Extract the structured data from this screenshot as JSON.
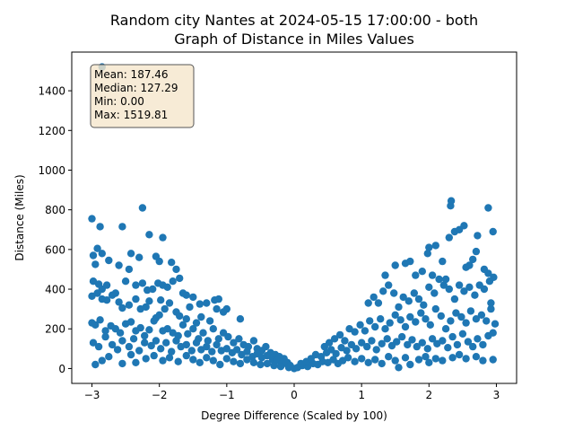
{
  "chart_data": {
    "type": "scatter",
    "title_line1": "Random city Nantes at 2024-05-15 17:00:00  - both",
    "title_line2": "Graph of Distance in Miles Values",
    "xlabel": "Degree Difference (Scaled by 100)",
    "ylabel": "Distance (Miles)",
    "xlim": [
      -3.3,
      3.3
    ],
    "ylim": [
      -75,
      1595
    ],
    "xticks": [
      -3,
      -2,
      -1,
      0,
      1,
      2,
      3
    ],
    "yticks": [
      0,
      200,
      400,
      600,
      800,
      1000,
      1200,
      1400
    ],
    "grid": false,
    "marker_color": "#1f77b4",
    "stats": {
      "mean": "Mean: 187.46",
      "median": "Median: 127.29",
      "min": "Min: 0.00",
      "max": "Max: 1519.81"
    },
    "points": [
      [
        -2.85,
        1520
      ],
      [
        -3.0,
        755
      ],
      [
        -2.88,
        715
      ],
      [
        -2.55,
        715
      ],
      [
        -2.25,
        810
      ],
      [
        -2.15,
        675
      ],
      [
        -1.95,
        660
      ],
      [
        -2.92,
        605
      ],
      [
        -2.85,
        580
      ],
      [
        -2.75,
        545
      ],
      [
        -2.98,
        570
      ],
      [
        -2.95,
        525
      ],
      [
        -2.6,
        520
      ],
      [
        -2.42,
        580
      ],
      [
        -2.3,
        560
      ],
      [
        -2.05,
        565
      ],
      [
        -2.0,
        540
      ],
      [
        -1.82,
        535
      ],
      [
        -1.75,
        500
      ],
      [
        -1.7,
        455
      ],
      [
        -2.98,
        440
      ],
      [
        -2.9,
        425
      ],
      [
        -2.85,
        400
      ],
      [
        -2.78,
        420
      ],
      [
        -2.65,
        380
      ],
      [
        -2.5,
        440
      ],
      [
        -2.45,
        500
      ],
      [
        -2.35,
        420
      ],
      [
        -2.25,
        430
      ],
      [
        -2.18,
        395
      ],
      [
        -2.1,
        400
      ],
      [
        -2.02,
        430
      ],
      [
        -1.95,
        420
      ],
      [
        -1.88,
        410
      ],
      [
        -1.8,
        440
      ],
      [
        -1.65,
        380
      ],
      [
        -1.6,
        370
      ],
      [
        -1.5,
        360
      ],
      [
        -1.4,
        325
      ],
      [
        -1.3,
        330
      ],
      [
        -1.18,
        345
      ],
      [
        -1.12,
        350
      ],
      [
        -1.0,
        300
      ],
      [
        -3.0,
        365
      ],
      [
        -2.92,
        380
      ],
      [
        -2.85,
        350
      ],
      [
        -2.78,
        345
      ],
      [
        -2.7,
        370
      ],
      [
        -2.6,
        335
      ],
      [
        -2.55,
        305
      ],
      [
        -2.45,
        320
      ],
      [
        -2.35,
        350
      ],
      [
        -2.28,
        300
      ],
      [
        -2.2,
        310
      ],
      [
        -2.15,
        340
      ],
      [
        -2.05,
        255
      ],
      [
        -1.98,
        345
      ],
      [
        -1.92,
        300
      ],
      [
        -1.85,
        330
      ],
      [
        -1.75,
        285
      ],
      [
        -1.7,
        265
      ],
      [
        -1.6,
        250
      ],
      [
        -1.55,
        310
      ],
      [
        -1.45,
        230
      ],
      [
        -1.38,
        260
      ],
      [
        -1.25,
        240
      ],
      [
        -1.15,
        300
      ],
      [
        -1.05,
        285
      ],
      [
        -0.8,
        250
      ],
      [
        -3.0,
        230
      ],
      [
        -2.95,
        220
      ],
      [
        -2.88,
        245
      ],
      [
        -2.8,
        190
      ],
      [
        -2.72,
        215
      ],
      [
        -2.65,
        200
      ],
      [
        -2.58,
        180
      ],
      [
        -2.5,
        225
      ],
      [
        -2.42,
        235
      ],
      [
        -2.35,
        190
      ],
      [
        -2.28,
        205
      ],
      [
        -2.22,
        165
      ],
      [
        -2.15,
        195
      ],
      [
        -2.08,
        240
      ],
      [
        -2.0,
        270
      ],
      [
        -1.95,
        190
      ],
      [
        -1.88,
        200
      ],
      [
        -1.8,
        180
      ],
      [
        -1.72,
        165
      ],
      [
        -1.65,
        220
      ],
      [
        -1.58,
        175
      ],
      [
        -1.5,
        200
      ],
      [
        -1.42,
        150
      ],
      [
        -1.35,
        180
      ],
      [
        -1.28,
        140
      ],
      [
        -1.2,
        200
      ],
      [
        -1.12,
        150
      ],
      [
        -1.05,
        180
      ],
      [
        -0.98,
        160
      ],
      [
        -0.9,
        130
      ],
      [
        -0.82,
        150
      ],
      [
        -0.75,
        120
      ],
      [
        -0.68,
        110
      ],
      [
        -0.6,
        140
      ],
      [
        -0.55,
        100
      ],
      [
        -0.48,
        90
      ],
      [
        -0.42,
        110
      ],
      [
        -0.35,
        80
      ],
      [
        -0.28,
        70
      ],
      [
        -0.22,
        60
      ],
      [
        -0.15,
        50
      ],
      [
        -0.1,
        30
      ],
      [
        -2.98,
        130
      ],
      [
        -2.9,
        110
      ],
      [
        -2.8,
        160
      ],
      [
        -2.7,
        120
      ],
      [
        -2.62,
        95
      ],
      [
        -2.55,
        140
      ],
      [
        -2.45,
        110
      ],
      [
        -2.38,
        150
      ],
      [
        -2.3,
        90
      ],
      [
        -2.22,
        130
      ],
      [
        -2.12,
        115
      ],
      [
        -2.05,
        140
      ],
      [
        -1.98,
        100
      ],
      [
        -1.9,
        130
      ],
      [
        -1.82,
        85
      ],
      [
        -1.75,
        140
      ],
      [
        -1.68,
        110
      ],
      [
        -1.6,
        120
      ],
      [
        -1.52,
        90
      ],
      [
        -1.45,
        130
      ],
      [
        -1.38,
        95
      ],
      [
        -1.3,
        110
      ],
      [
        -1.22,
        85
      ],
      [
        -1.15,
        120
      ],
      [
        -1.08,
        90
      ],
      [
        -1.0,
        100
      ],
      [
        -0.92,
        80
      ],
      [
        -0.85,
        95
      ],
      [
        -0.78,
        70
      ],
      [
        -0.7,
        85
      ],
      [
        -0.62,
        60
      ],
      [
        -0.55,
        75
      ],
      [
        -0.48,
        55
      ],
      [
        -0.4,
        65
      ],
      [
        -0.32,
        45
      ],
      [
        -0.25,
        40
      ],
      [
        -0.18,
        30
      ],
      [
        -0.12,
        25
      ],
      [
        -0.06,
        15
      ],
      [
        -2.95,
        20
      ],
      [
        -2.85,
        40
      ],
      [
        -2.75,
        60
      ],
      [
        -2.55,
        25
      ],
      [
        -2.42,
        70
      ],
      [
        -2.35,
        30
      ],
      [
        -2.2,
        50
      ],
      [
        -2.08,
        65
      ],
      [
        -1.95,
        40
      ],
      [
        -1.85,
        55
      ],
      [
        -1.72,
        35
      ],
      [
        -1.6,
        65
      ],
      [
        -1.5,
        45
      ],
      [
        -1.4,
        30
      ],
      [
        -1.3,
        55
      ],
      [
        -1.2,
        40
      ],
      [
        -1.1,
        20
      ],
      [
        -1.0,
        50
      ],
      [
        -0.9,
        35
      ],
      [
        -0.8,
        25
      ],
      [
        -0.7,
        45
      ],
      [
        -0.6,
        30
      ],
      [
        -0.5,
        20
      ],
      [
        -0.4,
        25
      ],
      [
        -0.3,
        15
      ],
      [
        -0.2,
        10
      ],
      [
        -0.08,
        5
      ],
      [
        0.0,
        0
      ],
      [
        0.05,
        5
      ],
      [
        0.12,
        15
      ],
      [
        0.2,
        10
      ],
      [
        0.28,
        25
      ],
      [
        0.35,
        20
      ],
      [
        0.42,
        35
      ],
      [
        0.5,
        30
      ],
      [
        0.58,
        45
      ],
      [
        0.65,
        25
      ],
      [
        0.72,
        40
      ],
      [
        0.8,
        55
      ],
      [
        0.9,
        35
      ],
      [
        1.0,
        50
      ],
      [
        1.1,
        30
      ],
      [
        1.2,
        45
      ],
      [
        1.3,
        25
      ],
      [
        1.4,
        60
      ],
      [
        1.5,
        40
      ],
      [
        1.55,
        5
      ],
      [
        1.65,
        55
      ],
      [
        1.72,
        20
      ],
      [
        1.85,
        45
      ],
      [
        1.95,
        60
      ],
      [
        2.0,
        30
      ],
      [
        2.1,
        50
      ],
      [
        2.2,
        40
      ],
      [
        2.35,
        55
      ],
      [
        2.45,
        70
      ],
      [
        2.55,
        50
      ],
      [
        2.7,
        60
      ],
      [
        2.8,
        40
      ],
      [
        2.95,
        45
      ],
      [
        0.1,
        25
      ],
      [
        0.18,
        35
      ],
      [
        0.25,
        50
      ],
      [
        0.32,
        70
      ],
      [
        0.4,
        60
      ],
      [
        0.48,
        80
      ],
      [
        0.55,
        95
      ],
      [
        0.62,
        75
      ],
      [
        0.7,
        105
      ],
      [
        0.78,
        90
      ],
      [
        0.85,
        120
      ],
      [
        0.92,
        100
      ],
      [
        1.0,
        130
      ],
      [
        1.08,
        110
      ],
      [
        1.15,
        140
      ],
      [
        1.22,
        95
      ],
      [
        1.3,
        125
      ],
      [
        1.38,
        150
      ],
      [
        1.45,
        115
      ],
      [
        1.52,
        135
      ],
      [
        1.6,
        160
      ],
      [
        1.68,
        120
      ],
      [
        1.75,
        145
      ],
      [
        1.82,
        110
      ],
      [
        1.9,
        130
      ],
      [
        1.98,
        100
      ],
      [
        2.05,
        150
      ],
      [
        2.12,
        125
      ],
      [
        2.2,
        140
      ],
      [
        2.28,
        105
      ],
      [
        2.35,
        160
      ],
      [
        2.42,
        120
      ],
      [
        2.5,
        175
      ],
      [
        2.58,
        135
      ],
      [
        2.65,
        110
      ],
      [
        2.72,
        150
      ],
      [
        2.8,
        120
      ],
      [
        2.88,
        165
      ],
      [
        2.95,
        180
      ],
      [
        0.45,
        110
      ],
      [
        0.52,
        130
      ],
      [
        0.6,
        150
      ],
      [
        0.68,
        170
      ],
      [
        0.75,
        140
      ],
      [
        0.82,
        200
      ],
      [
        0.9,
        185
      ],
      [
        0.98,
        220
      ],
      [
        1.05,
        190
      ],
      [
        1.12,
        240
      ],
      [
        1.2,
        210
      ],
      [
        1.28,
        250
      ],
      [
        1.35,
        200
      ],
      [
        1.42,
        230
      ],
      [
        1.5,
        270
      ],
      [
        1.58,
        245
      ],
      [
        1.65,
        210
      ],
      [
        1.72,
        260
      ],
      [
        1.8,
        235
      ],
      [
        1.88,
        280
      ],
      [
        1.95,
        250
      ],
      [
        2.02,
        220
      ],
      [
        2.1,
        300
      ],
      [
        2.18,
        265
      ],
      [
        2.25,
        200
      ],
      [
        2.32,
        240
      ],
      [
        2.4,
        280
      ],
      [
        2.48,
        260
      ],
      [
        2.55,
        230
      ],
      [
        2.62,
        290
      ],
      [
        2.7,
        250
      ],
      [
        2.78,
        270
      ],
      [
        2.85,
        240
      ],
      [
        2.92,
        300
      ],
      [
        2.98,
        225
      ],
      [
        1.1,
        330
      ],
      [
        1.18,
        360
      ],
      [
        1.25,
        330
      ],
      [
        1.32,
        390
      ],
      [
        1.4,
        420
      ],
      [
        1.48,
        380
      ],
      [
        1.55,
        310
      ],
      [
        1.62,
        360
      ],
      [
        1.7,
        340
      ],
      [
        1.78,
        380
      ],
      [
        1.85,
        350
      ],
      [
        1.92,
        320
      ],
      [
        2.0,
        410
      ],
      [
        2.08,
        380
      ],
      [
        2.15,
        450
      ],
      [
        2.22,
        420
      ],
      [
        2.3,
        400
      ],
      [
        2.38,
        350
      ],
      [
        2.45,
        420
      ],
      [
        2.52,
        390
      ],
      [
        2.6,
        410
      ],
      [
        2.68,
        370
      ],
      [
        2.75,
        420
      ],
      [
        2.82,
        400
      ],
      [
        2.9,
        440
      ],
      [
        2.96,
        460
      ],
      [
        1.35,
        470
      ],
      [
        1.5,
        520
      ],
      [
        1.65,
        530
      ],
      [
        1.72,
        540
      ],
      [
        1.8,
        470
      ],
      [
        1.9,
        490
      ],
      [
        1.98,
        580
      ],
      [
        2.0,
        610
      ],
      [
        2.1,
        620
      ],
      [
        2.2,
        540
      ],
      [
        2.3,
        660
      ],
      [
        2.38,
        690
      ],
      [
        2.45,
        700
      ],
      [
        2.52,
        720
      ],
      [
        2.6,
        520
      ],
      [
        2.65,
        550
      ],
      [
        2.7,
        590
      ],
      [
        2.72,
        670
      ],
      [
        2.82,
        500
      ],
      [
        2.88,
        480
      ],
      [
        2.95,
        690
      ],
      [
        2.32,
        820
      ],
      [
        2.33,
        845
      ],
      [
        2.88,
        810
      ],
      [
        2.05,
        470
      ],
      [
        2.25,
        450
      ],
      [
        2.55,
        510
      ],
      [
        2.92,
        330
      ]
    ]
  }
}
